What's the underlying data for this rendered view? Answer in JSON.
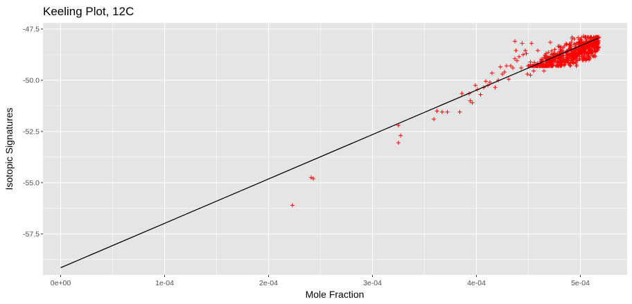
{
  "chart_data": {
    "type": "scatter",
    "title": "Keeling Plot, 12C",
    "xlabel": "Mole Fraction",
    "ylabel": "Isotopic Signatures",
    "xlim": [
      -1.7e-05,
      0.000545
    ],
    "ylim": [
      -59.5,
      -47.2
    ],
    "x_ticks": [
      {
        "value": 0,
        "label": "0e+00"
      },
      {
        "value": 0.0001,
        "label": "1e-04"
      },
      {
        "value": 0.0002,
        "label": "2e-04"
      },
      {
        "value": 0.0003,
        "label": "3e-04"
      },
      {
        "value": 0.0004,
        "label": "4e-04"
      },
      {
        "value": 0.0005,
        "label": "5e-04"
      }
    ],
    "y_ticks": [
      {
        "value": -47.5,
        "label": "-47.5"
      },
      {
        "value": -50.0,
        "label": "-50.0"
      },
      {
        "value": -52.5,
        "label": "-52.5"
      },
      {
        "value": -55.0,
        "label": "-55.0"
      },
      {
        "value": -57.5,
        "label": "-57.5"
      }
    ],
    "grid": true,
    "marker": "+",
    "point_color": "#ff0000",
    "line_color": "#000000",
    "panel_color": "#e5e5e5",
    "grid_color": "#ffffff",
    "series": [
      {
        "kind": "points",
        "x": [
          0.000223,
          0.000241,
          0.000243,
          0.000325,
          0.000325,
          0.000327,
          0.000359,
          0.000362,
          0.000367,
          0.000372,
          0.000384,
          0.000386,
          0.000393,
          0.000394,
          0.000396,
          0.000399,
          0.000401,
          0.000404,
          0.000407,
          0.000409,
          0.000411,
          0.000413,
          0.000415,
          0.000418,
          0.000421,
          0.000423,
          0.000425,
          0.000427,
          0.000429,
          0.000431,
          0.000433,
          0.000435,
          0.000437,
          0.000439,
          0.000441,
          0.000443,
          0.000445,
          0.000447,
          0.000449,
          0.000452,
          0.000455,
          0.000437,
          0.000438,
          0.000444,
          0.000448,
          0.000453,
          0.000459,
          0.000471,
          0.000459,
          0.000465,
          0.000481,
          0.000492,
          0.000503,
          0.000509,
          0.000512
        ],
        "y": [
          -56.1,
          -54.75,
          -54.8,
          -52.2,
          -53.05,
          -52.7,
          -51.9,
          -51.5,
          -51.55,
          -51.55,
          -51.55,
          -50.65,
          -50.65,
          -51.0,
          -51.1,
          -50.25,
          -50.45,
          -50.7,
          -50.35,
          -50.05,
          -50.25,
          -50.1,
          -49.65,
          -50.35,
          -50.0,
          -49.35,
          -49.7,
          -49.6,
          -49.3,
          -49.95,
          -49.3,
          -49.4,
          -48.95,
          -49.05,
          -48.85,
          -49.4,
          -48.75,
          -48.55,
          -49.7,
          -49.75,
          -49.55,
          -48.1,
          -48.55,
          -48.2,
          -48.7,
          -48.2,
          -48.55,
          -48.15,
          -49.3,
          -49.55,
          -48.9,
          -47.9,
          -47.85,
          -48.95,
          -48.8
        ]
      },
      {
        "kind": "cluster",
        "x_range": [
          0.000448,
          0.000518
        ],
        "y_range": [
          -49.3,
          -47.9
        ],
        "count": 600
      },
      {
        "kind": "line",
        "x": [
          0.0,
          0.000517
        ],
        "y": [
          -59.15,
          -47.95
        ]
      }
    ]
  }
}
